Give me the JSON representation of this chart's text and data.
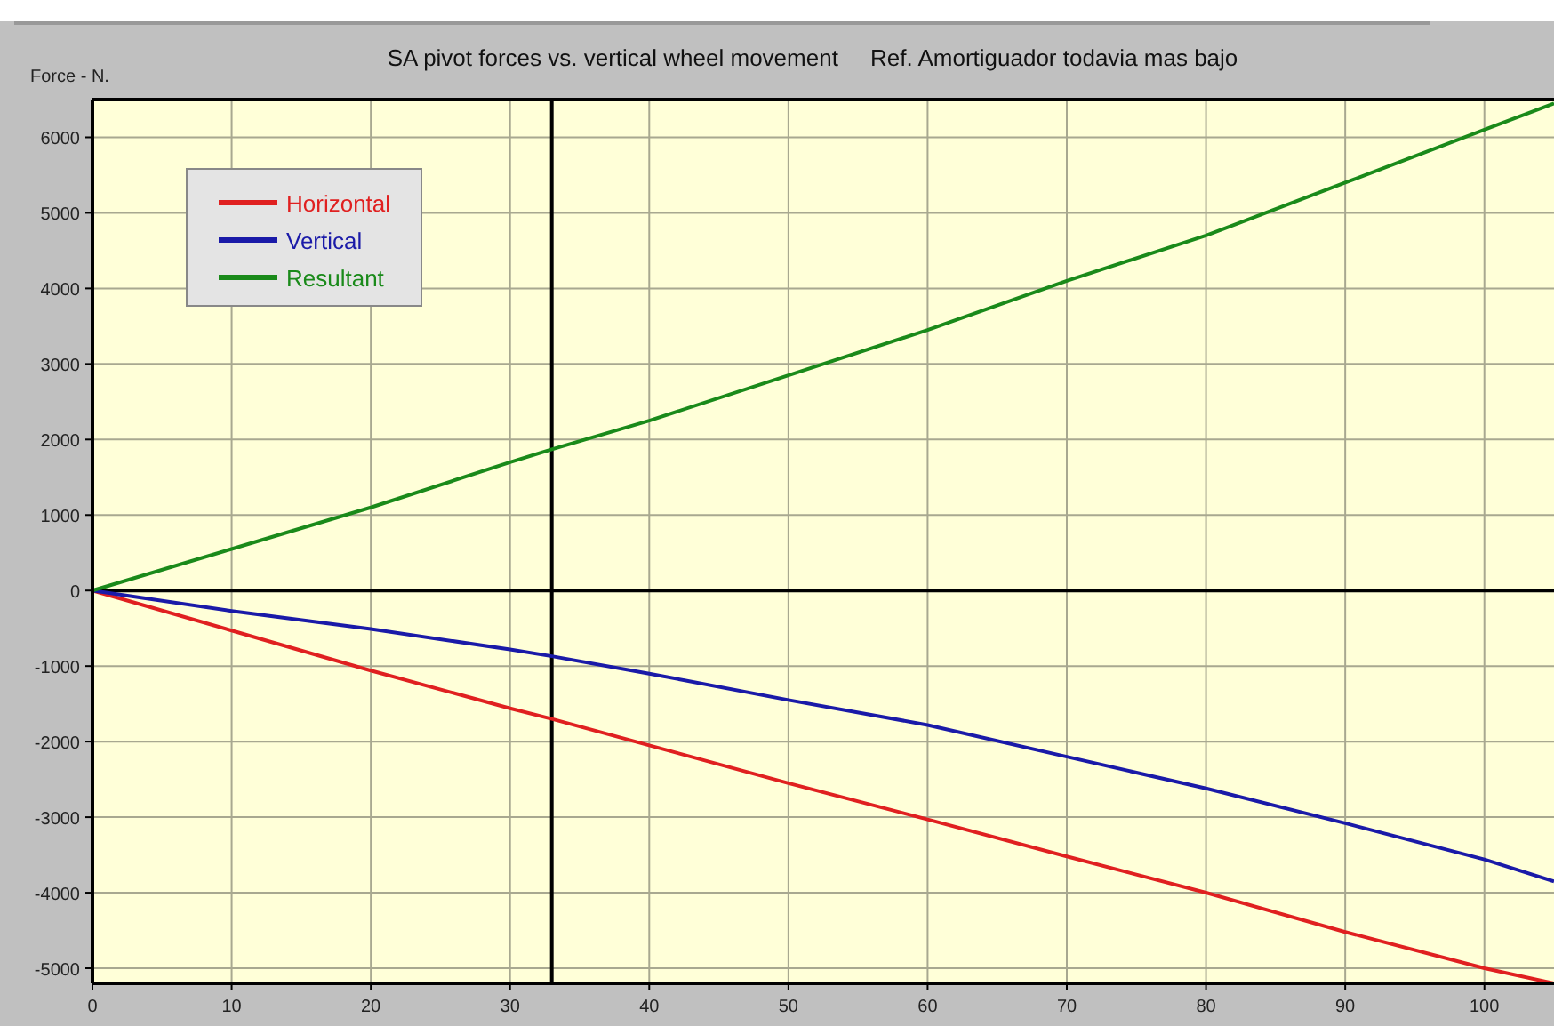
{
  "chart_data": {
    "type": "line",
    "title": "SA pivot forces vs. vertical wheel movement     Ref. Amortiguador todavia mas bajo",
    "ylabel": "Force - N.",
    "x": [
      0,
      10,
      20,
      30,
      33,
      40,
      50,
      60,
      70,
      80,
      90,
      100,
      105
    ],
    "series": [
      {
        "name": "Horizontal",
        "color": "#e02020",
        "values": [
          0,
          -530,
          -1060,
          -1560,
          -1700,
          -2050,
          -2550,
          -3030,
          -3520,
          -4000,
          -4520,
          -5000,
          -5200
        ]
      },
      {
        "name": "Vertical",
        "color": "#1a1aa8",
        "values": [
          0,
          -270,
          -510,
          -780,
          -870,
          -1100,
          -1450,
          -1780,
          -2200,
          -2620,
          -3080,
          -3560,
          -3850
        ]
      },
      {
        "name": "Resultant",
        "color": "#1a8a1a",
        "values": [
          0,
          550,
          1100,
          1700,
          1870,
          2250,
          2850,
          3450,
          4100,
          4700,
          5400,
          6100,
          6450
        ]
      }
    ],
    "xlim": [
      0,
      105
    ],
    "ylim": [
      -5200,
      6500
    ],
    "xticks": [
      0,
      10,
      20,
      30,
      40,
      50,
      60,
      70,
      80,
      90,
      100
    ],
    "yticks": [
      -5000,
      -4000,
      -3000,
      -2000,
      -1000,
      0,
      1000,
      2000,
      3000,
      4000,
      5000,
      6000
    ],
    "ref_lines": [
      {
        "axis": "x",
        "value": 33,
        "color": "#000000"
      },
      {
        "axis": "y",
        "value": 0,
        "color": "#000000"
      }
    ],
    "grid": true,
    "legend": "top left",
    "marker": "none",
    "line_style": "solid"
  }
}
